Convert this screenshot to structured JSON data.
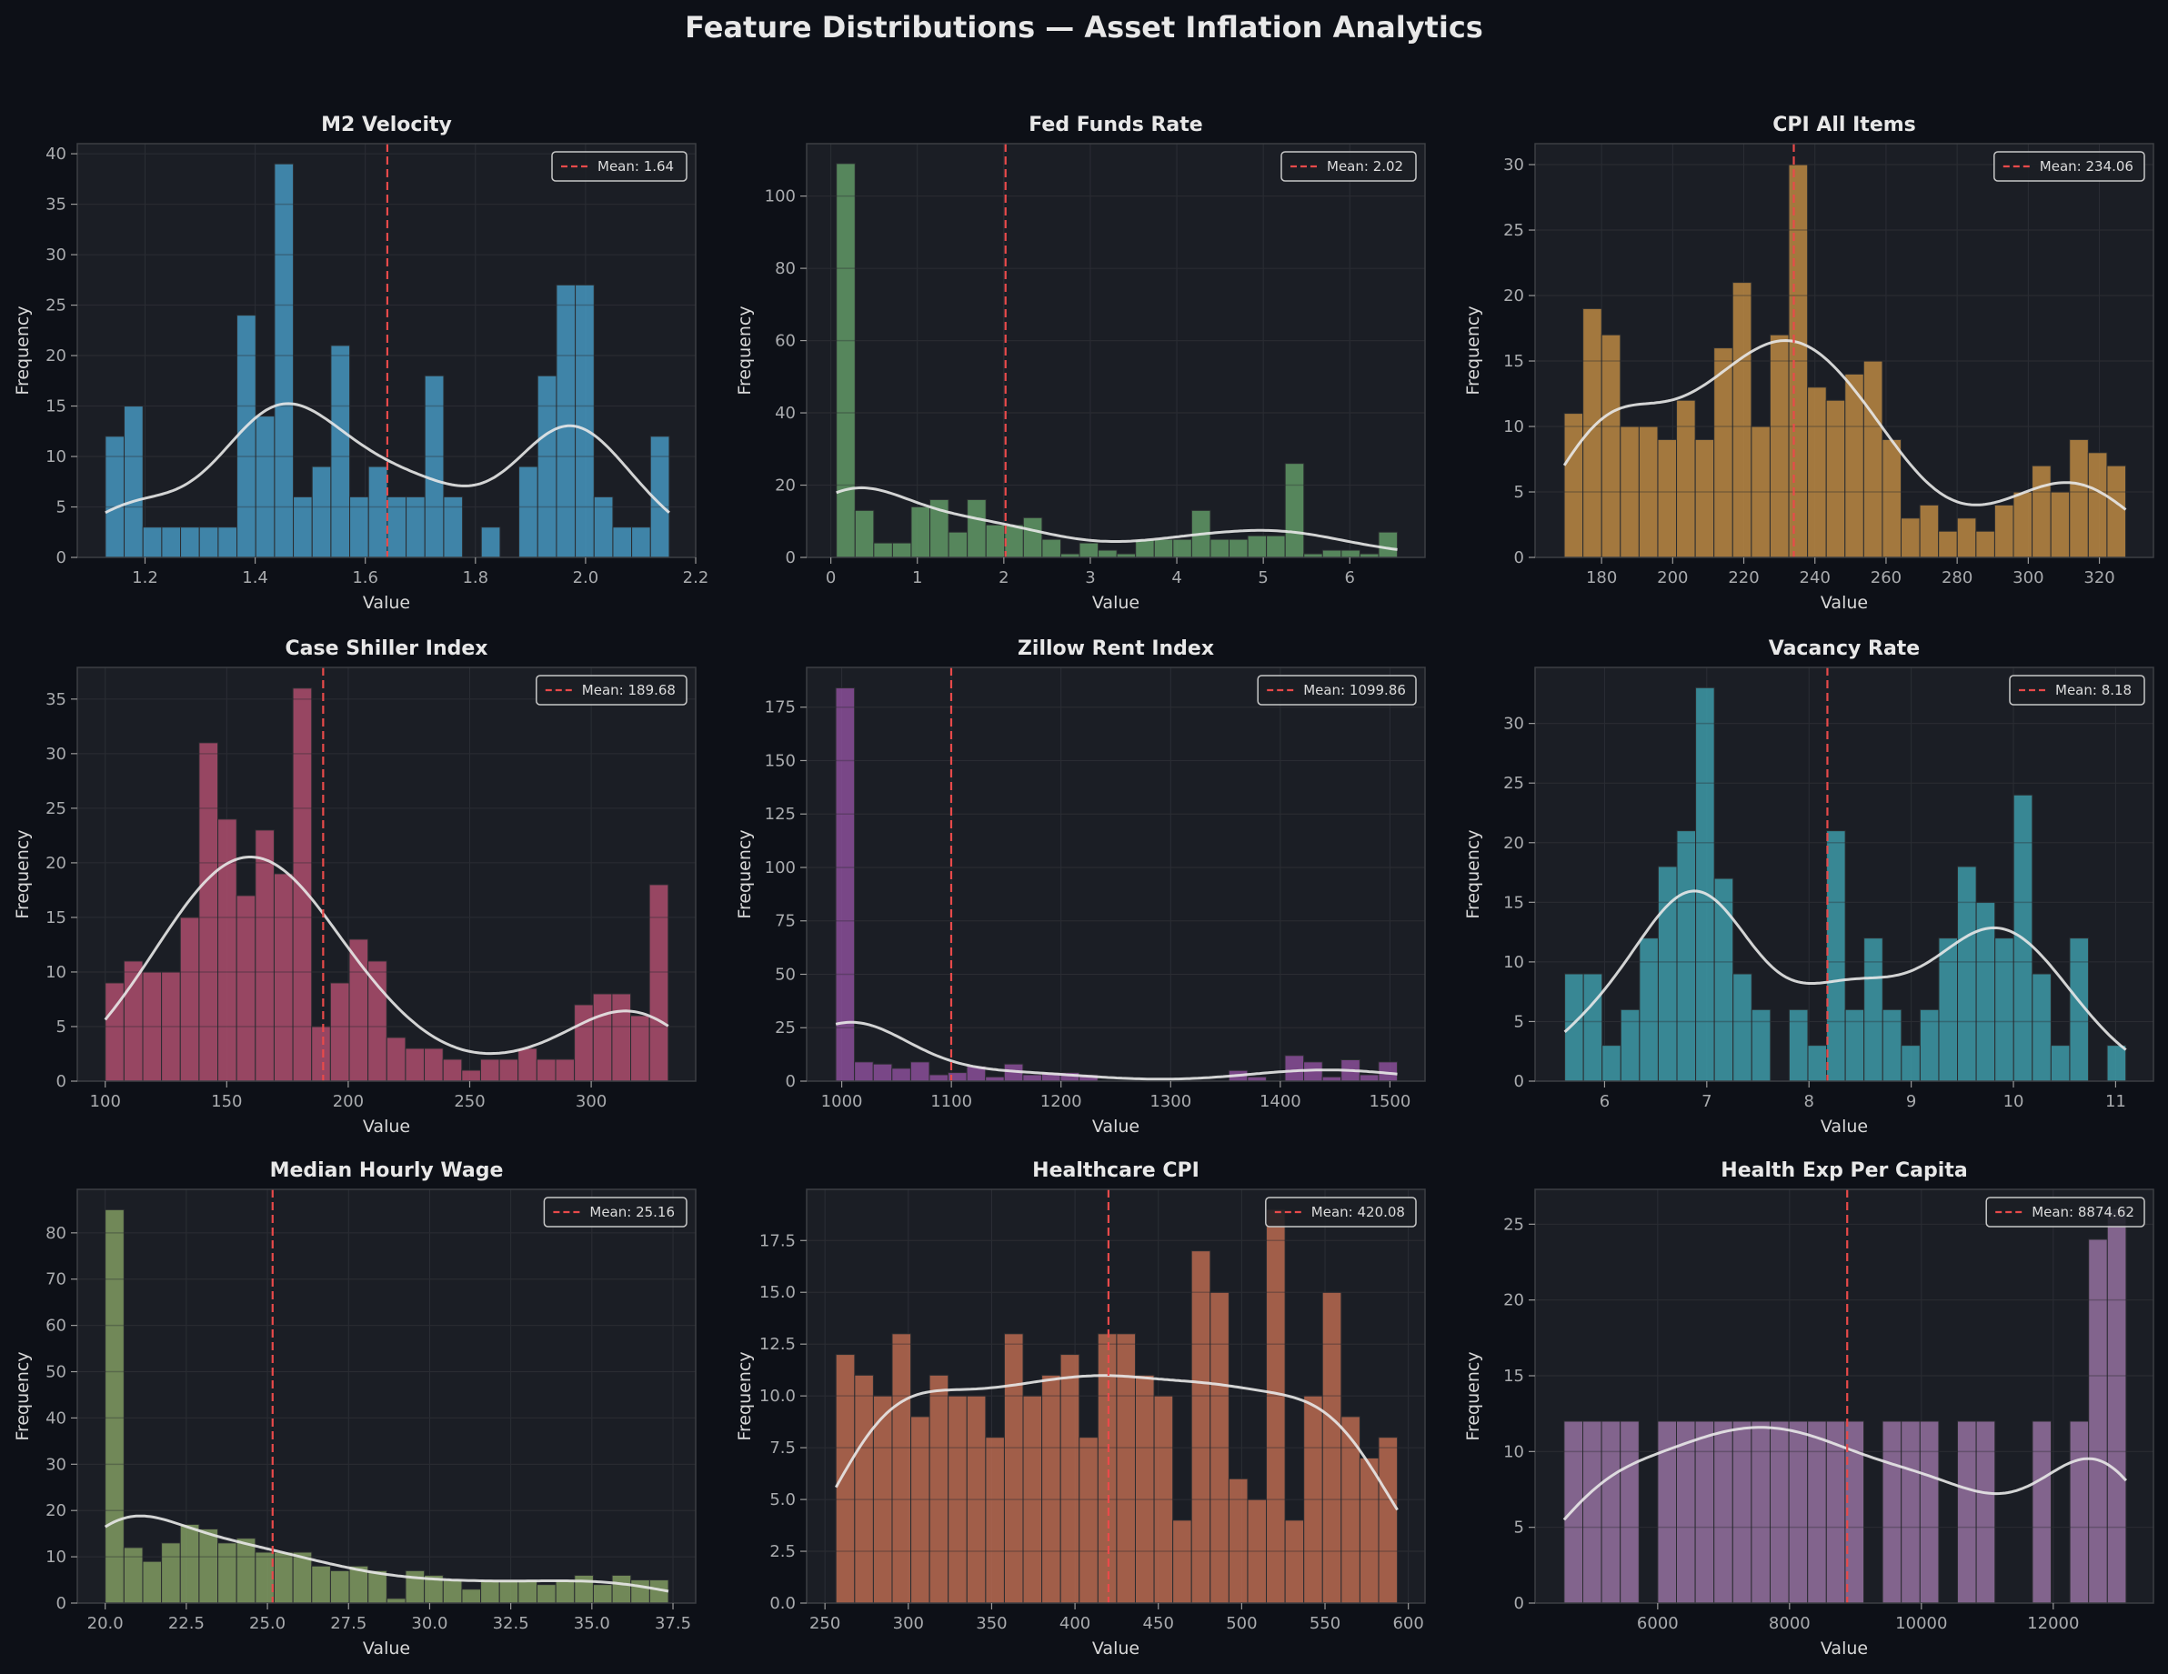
{
  "figure": {
    "title": "Feature Distributions — Asset Inflation Analytics",
    "background": "#0d1017",
    "axes_background": "#1b1e25",
    "mean_line_color": "#e84a4a",
    "kde_color": "#e8e8e8"
  },
  "chart_data": [
    {
      "type": "bar",
      "title": "M2 Velocity",
      "xlabel": "Value",
      "ylabel": "Frequency",
      "color": "#4596c0",
      "mean": 1.64,
      "mean_label": "Mean: 1.64",
      "legend": "top-right",
      "grid": true,
      "bin_range": [
        1.128,
        2.152
      ],
      "values": [
        12,
        15,
        3,
        3,
        3,
        3,
        3,
        24,
        14,
        39,
        6,
        9,
        21,
        6,
        9,
        6,
        6,
        18,
        6,
        0,
        3,
        0,
        9,
        18,
        27,
        27,
        6,
        3,
        3,
        12
      ],
      "xlim": [
        1.077,
        2.2
      ],
      "ylim": [
        0,
        41
      ],
      "xticks": [
        1.2,
        1.4,
        1.6,
        1.8,
        2.0,
        2.2
      ],
      "xtick_labels": [
        "1.2",
        "1.4",
        "1.6",
        "1.8",
        "2.0",
        "2.2"
      ],
      "yticks": [
        0,
        5,
        10,
        15,
        20,
        25,
        30,
        35,
        40
      ],
      "ytick_labels": [
        "0",
        "5",
        "10",
        "15",
        "20",
        "25",
        "30",
        "35",
        "40"
      ]
    },
    {
      "type": "bar",
      "title": "Fed Funds Rate",
      "xlabel": "Value",
      "ylabel": "Frequency",
      "color": "#609966",
      "mean": 2.02,
      "mean_label": "Mean: 2.02",
      "legend": "top-right",
      "grid": true,
      "bin_range": [
        0.064,
        6.55
      ],
      "values": [
        109,
        13,
        4,
        4,
        14,
        16,
        7,
        16,
        9,
        9,
        11,
        5,
        1,
        4,
        2,
        1,
        5,
        5,
        5,
        13,
        5,
        5,
        6,
        6,
        26,
        1,
        2,
        2,
        1,
        7
      ],
      "xlim": [
        -0.28,
        6.87
      ],
      "ylim": [
        0,
        114.5
      ],
      "xticks": [
        0,
        1,
        2,
        3,
        4,
        5,
        6
      ],
      "xtick_labels": [
        "0",
        "1",
        "2",
        "3",
        "4",
        "5",
        "6"
      ],
      "yticks": [
        0,
        20,
        40,
        60,
        80,
        100
      ],
      "ytick_labels": [
        "0",
        "20",
        "40",
        "60",
        "80",
        "100"
      ]
    },
    {
      "type": "bar",
      "title": "CPI All Items",
      "xlabel": "Value",
      "ylabel": "Frequency",
      "color": "#bb8843",
      "mean": 234.06,
      "mean_label": "Mean: 234.06",
      "legend": "top-right",
      "grid": true,
      "bin_range": [
        169.5,
        327.4
      ],
      "values": [
        11,
        19,
        17,
        10,
        10,
        9,
        12,
        9,
        16,
        21,
        10,
        17,
        30,
        13,
        12,
        14,
        15,
        9,
        3,
        4,
        2,
        3,
        2,
        4,
        5,
        7,
        5,
        9,
        8,
        7
      ],
      "xlim": [
        161.3,
        335.2
      ],
      "ylim": [
        0,
        31.6
      ],
      "xticks": [
        180,
        200,
        220,
        240,
        260,
        280,
        300,
        320
      ],
      "xtick_labels": [
        "180",
        "200",
        "220",
        "240",
        "260",
        "280",
        "300",
        "320"
      ],
      "yticks": [
        0,
        5,
        10,
        15,
        20,
        25,
        30
      ],
      "ytick_labels": [
        "0",
        "5",
        "10",
        "15",
        "20",
        "25",
        "30"
      ]
    },
    {
      "type": "bar",
      "title": "Case Shiller Index",
      "xlabel": "Value",
      "ylabel": "Frequency",
      "color": "#ad4d6d",
      "mean": 189.68,
      "mean_label": "Mean: 189.68",
      "legend": "top-right",
      "grid": true,
      "bin_range": [
        100,
        331.7
      ],
      "values": [
        9,
        11,
        10,
        10,
        15,
        31,
        24,
        17,
        23,
        19,
        36,
        5,
        9,
        13,
        11,
        4,
        3,
        3,
        2,
        1,
        2,
        2,
        3,
        2,
        2,
        7,
        8,
        8,
        6,
        18
      ],
      "xlim": [
        88.5,
        343
      ],
      "ylim": [
        0,
        37.9
      ],
      "xticks": [
        100,
        150,
        200,
        250,
        300
      ],
      "xtick_labels": [
        "100",
        "150",
        "200",
        "250",
        "300"
      ],
      "yticks": [
        0,
        5,
        10,
        15,
        20,
        25,
        30,
        35
      ],
      "ytick_labels": [
        "0",
        "5",
        "10",
        "15",
        "20",
        "25",
        "30",
        "35"
      ]
    },
    {
      "type": "bar",
      "title": "Zillow Rent Index",
      "xlabel": "Value",
      "ylabel": "Frequency",
      "color": "#8a4f99",
      "mean": 1099.86,
      "mean_label": "Mean: 1099.86",
      "legend": "top-right",
      "grid": true,
      "bin_range": [
        994.6,
        1506.7
      ],
      "values": [
        184,
        9,
        8,
        6,
        9,
        3,
        4,
        7,
        2,
        8,
        3,
        4,
        4,
        3,
        0,
        0,
        0,
        0,
        0,
        0,
        0,
        5,
        2,
        0,
        12,
        9,
        2,
        10,
        3,
        9
      ],
      "xlim": [
        968,
        1532
      ],
      "ylim": [
        0,
        193.6
      ],
      "xticks": [
        1000,
        1100,
        1200,
        1300,
        1400,
        1500
      ],
      "xtick_labels": [
        "1000",
        "1100",
        "1200",
        "1300",
        "1400",
        "1500"
      ],
      "yticks": [
        0,
        25,
        50,
        75,
        100,
        125,
        150,
        175
      ],
      "ytick_labels": [
        "0",
        "25",
        "50",
        "75",
        "100",
        "125",
        "150",
        "175"
      ]
    },
    {
      "type": "bar",
      "title": "Vacancy Rate",
      "xlabel": "Value",
      "ylabel": "Frequency",
      "color": "#3d9aa8",
      "mean": 8.18,
      "mean_label": "Mean: 8.18",
      "legend": "top-right",
      "grid": true,
      "bin_range": [
        5.61,
        11.1
      ],
      "values": [
        9,
        9,
        3,
        6,
        12,
        18,
        21,
        33,
        17,
        9,
        6,
        0,
        6,
        3,
        21,
        6,
        12,
        6,
        3,
        6,
        12,
        18,
        15,
        12,
        24,
        9,
        3,
        12,
        0,
        3
      ],
      "xlim": [
        5.32,
        11.37
      ],
      "ylim": [
        0,
        34.7
      ],
      "xticks": [
        6,
        7,
        8,
        9,
        10,
        11
      ],
      "xtick_labels": [
        "6",
        "7",
        "8",
        "9",
        "10",
        "11"
      ],
      "yticks": [
        0,
        5,
        10,
        15,
        20,
        25,
        30
      ],
      "ytick_labels": [
        "0",
        "5",
        "10",
        "15",
        "20",
        "25",
        "30"
      ]
    },
    {
      "type": "bar",
      "title": "Median Hourly Wage",
      "xlabel": "Value",
      "ylabel": "Frequency",
      "color": "#809b61",
      "mean": 25.16,
      "mean_label": "Mean: 25.16",
      "legend": "top-right",
      "grid": true,
      "bin_range": [
        20.0,
        37.36
      ],
      "values": [
        85,
        12,
        9,
        13,
        17,
        16,
        13,
        14,
        11,
        11,
        11,
        8,
        7,
        8,
        7,
        1,
        7,
        6,
        5,
        3,
        5,
        5,
        5,
        4,
        5,
        6,
        4,
        6,
        5,
        5
      ],
      "xlim": [
        19.14,
        38.2
      ],
      "ylim": [
        0,
        89.4
      ],
      "xticks": [
        20,
        22.5,
        25,
        27.5,
        30,
        32.5,
        35,
        37.5
      ],
      "xtick_labels": [
        "20.0",
        "22.5",
        "25.0",
        "27.5",
        "30.0",
        "32.5",
        "35.0",
        "37.5"
      ],
      "yticks": [
        0,
        10,
        20,
        30,
        40,
        50,
        60,
        70,
        80
      ],
      "ytick_labels": [
        "0",
        "10",
        "20",
        "30",
        "40",
        "50",
        "60",
        "70",
        "80"
      ]
    },
    {
      "type": "bar",
      "title": "Healthcare CPI",
      "xlabel": "Value",
      "ylabel": "Frequency",
      "color": "#b96a50",
      "mean": 420.08,
      "mean_label": "Mean: 420.08",
      "legend": "top-right",
      "grid": true,
      "bin_range": [
        256.6,
        593.4
      ],
      "values": [
        12,
        11,
        10,
        13,
        9,
        11,
        10,
        10,
        8,
        13,
        10,
        11,
        12,
        8,
        13,
        13,
        11,
        10,
        4,
        17,
        15,
        6,
        5,
        19,
        4,
        10,
        15,
        9,
        7,
        8
      ],
      "xlim": [
        239,
        610
      ],
      "ylim": [
        0,
        19.97
      ],
      "xticks": [
        250,
        300,
        350,
        400,
        450,
        500,
        550,
        600
      ],
      "xtick_labels": [
        "250",
        "300",
        "350",
        "400",
        "450",
        "500",
        "550",
        "600"
      ],
      "yticks": [
        0,
        2.5,
        5,
        7.5,
        10,
        12.5,
        15,
        17.5
      ],
      "ytick_labels": [
        "0.0",
        "2.5",
        "5.0",
        "7.5",
        "10.0",
        "12.5",
        "15.0",
        "17.5"
      ]
    },
    {
      "type": "bar",
      "title": "Health Exp Per Capita",
      "xlabel": "Value",
      "ylabel": "Frequency",
      "color": "#9471a0",
      "mean": 8874.62,
      "mean_label": "Mean: 8874.62",
      "legend": "top-right",
      "grid": true,
      "bin_range": [
        4580,
        13105
      ],
      "values": [
        12,
        12,
        12,
        12,
        0,
        12,
        12,
        12,
        12,
        12,
        12,
        12,
        12,
        12,
        12,
        12,
        0,
        12,
        12,
        12,
        0,
        12,
        12,
        0,
        0,
        12,
        0,
        12,
        24,
        26
      ],
      "xlim": [
        4140,
        13520
      ],
      "ylim": [
        0,
        27.3
      ],
      "xticks": [
        6000,
        8000,
        10000,
        12000
      ],
      "xtick_labels": [
        "6000",
        "8000",
        "10000",
        "12000"
      ],
      "yticks": [
        0,
        5,
        10,
        15,
        20,
        25
      ],
      "ytick_labels": [
        "0",
        "5",
        "10",
        "15",
        "20",
        "25"
      ]
    }
  ]
}
